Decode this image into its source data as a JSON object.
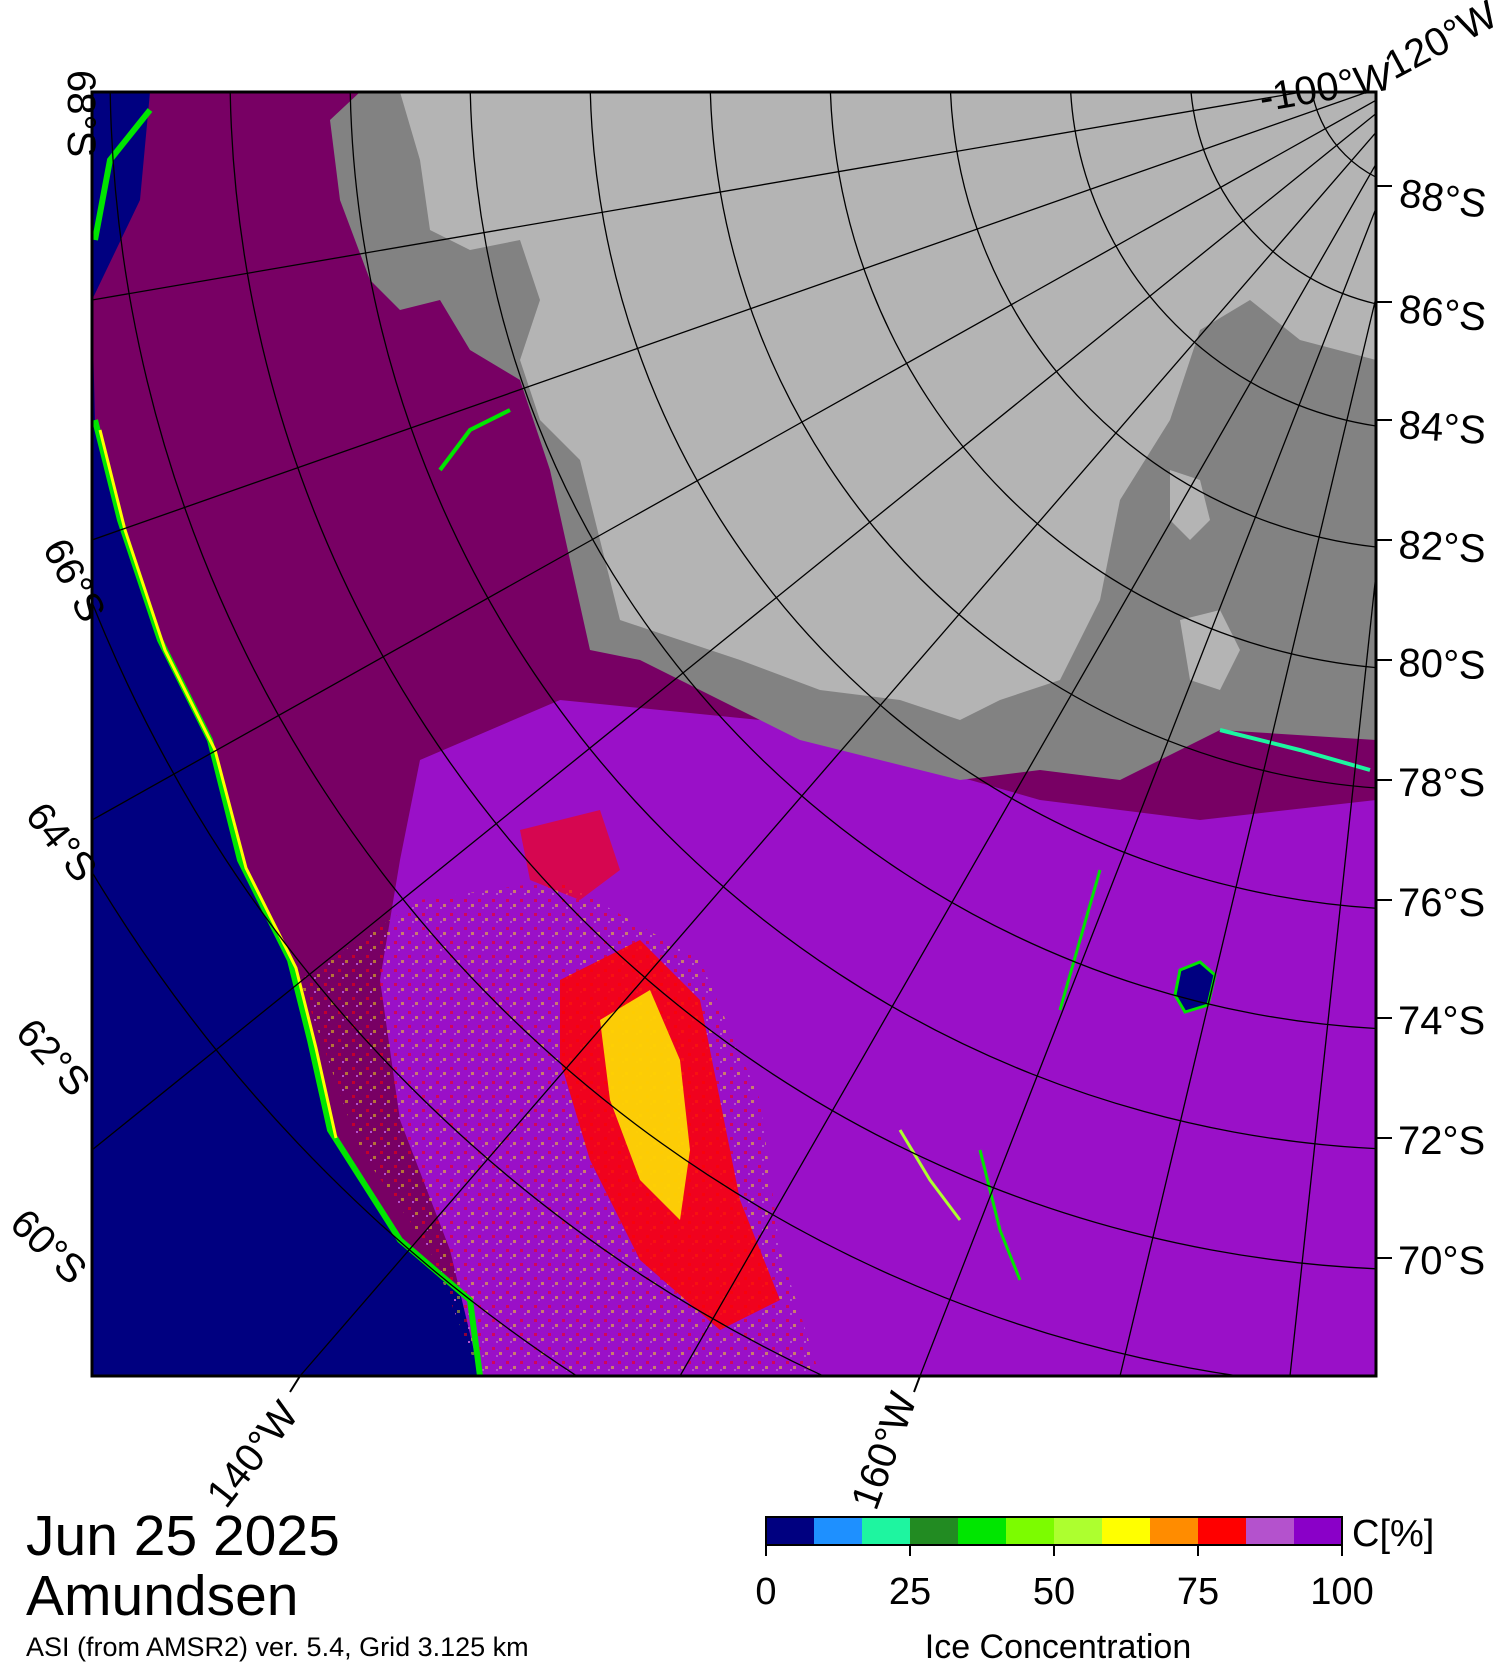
{
  "date": "Jun 25 2025",
  "region": "Amundsen",
  "source": "ASI (from AMSR2) ver. 5.4,  Grid 3.125 km",
  "latitude_labels_right": [
    "88°S",
    "86°S",
    "84°S",
    "82°S",
    "80°S",
    "78°S",
    "76°S",
    "74°S",
    "72°S",
    "70°S"
  ],
  "latitude_labels_left": [
    "68°S",
    "66°S",
    "64°S",
    "62°S",
    "60°S"
  ],
  "longitude_labels": [
    "-100°W",
    "120°W",
    "140°W",
    "160°W"
  ],
  "colorbar": {
    "unit": "C[%]",
    "title": "Ice Concentration",
    "ticks": [
      "0",
      "25",
      "50",
      "75",
      "100"
    ],
    "colors": [
      "#000080",
      "#1e90ff",
      "#1ef5a0",
      "#228b22",
      "#00e600",
      "#7cfc00",
      "#adff2f",
      "#ffff00",
      "#ff8c00",
      "#ff0000",
      "#b452cd",
      "#8a00c8"
    ]
  },
  "colors": {
    "ocean": "#000080",
    "land_ice": "#b4b4b4",
    "ice_shelf": "#828282",
    "full_ice": "#780064",
    "pack_ice": "#9a10c8"
  }
}
